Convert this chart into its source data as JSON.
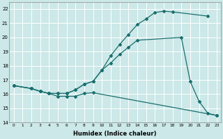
{
  "xlabel": "Humidex (Indice chaleur)",
  "ylabel": "",
  "bg_color": "#cce8e8",
  "grid_color": "#b8d8d8",
  "line_color": "#1a6e6e",
  "xlim": [
    -0.5,
    23.5
  ],
  "ylim": [
    14,
    22.5
  ],
  "xticks": [
    0,
    1,
    2,
    3,
    4,
    5,
    6,
    7,
    8,
    9,
    10,
    11,
    12,
    13,
    14,
    15,
    16,
    17,
    18,
    19,
    20,
    21,
    22,
    23
  ],
  "yticks": [
    14,
    15,
    16,
    17,
    18,
    19,
    20,
    21,
    22
  ],
  "curve1_x": [
    0,
    2,
    3,
    4,
    5,
    6,
    7,
    8,
    9,
    10,
    11,
    12,
    13,
    14,
    15,
    16,
    17,
    18,
    22
  ],
  "curve1_y": [
    16.6,
    16.4,
    16.2,
    16.05,
    16.05,
    16.05,
    16.3,
    16.7,
    16.9,
    17.7,
    18.7,
    19.5,
    20.2,
    20.9,
    21.3,
    21.75,
    21.85,
    21.8,
    21.5
  ],
  "curve2_x": [
    0,
    2,
    3,
    4,
    5,
    6,
    7,
    8,
    9,
    10,
    11,
    12,
    13,
    14,
    19,
    20,
    21,
    22,
    23
  ],
  "curve2_y": [
    16.6,
    16.4,
    16.2,
    16.05,
    16.05,
    16.05,
    16.3,
    16.7,
    16.9,
    17.7,
    18.2,
    18.8,
    19.3,
    19.8,
    20.0,
    16.9,
    15.5,
    14.65,
    14.5
  ],
  "curve3_x": [
    0,
    2,
    3,
    4,
    5,
    6,
    7,
    8,
    9,
    23
  ],
  "curve3_y": [
    16.6,
    16.4,
    16.2,
    16.05,
    15.85,
    15.85,
    15.85,
    16.05,
    16.1,
    14.5
  ]
}
